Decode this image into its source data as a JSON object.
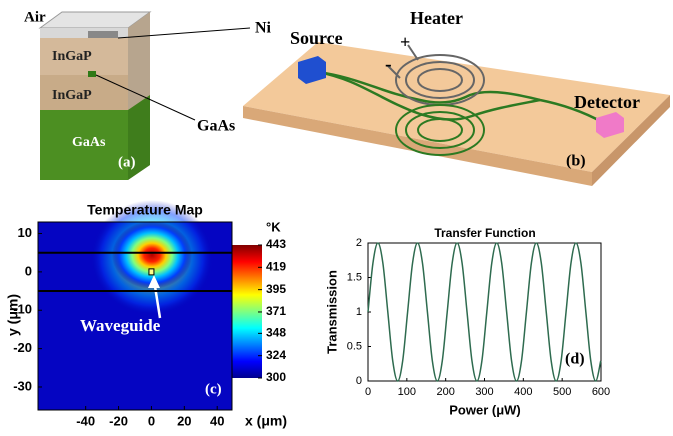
{
  "panel_a": {
    "labels": [
      "Air",
      "Ni",
      "InGaP",
      "InGaP",
      "GaAs",
      "GaAs"
    ],
    "tag": "(a)"
  },
  "panel_b": {
    "source": "Source",
    "heater": "Heater",
    "plus": "+",
    "minus": "-",
    "detector": "Detector",
    "tag": "(b)"
  },
  "chart_data": [
    {
      "type": "heatmap",
      "title": "Temperature Map",
      "color_unit": "°K",
      "clim": [
        300,
        443
      ],
      "cticks": [
        443,
        419,
        395,
        371,
        348,
        324,
        300
      ],
      "xlim": [
        -69,
        49
      ],
      "ylim": [
        -36,
        13
      ],
      "xticks": [
        -40,
        -20,
        0,
        20,
        40
      ],
      "yticks": [
        10,
        0,
        -10,
        -20,
        -30
      ],
      "x_label": "x (μm)",
      "y_label": "y (μm)",
      "layer_boundaries": [
        5,
        -5
      ],
      "annotation": "Waveguide",
      "tag": "(c)"
    },
    {
      "type": "line",
      "title": "Transfer Function",
      "x_label": "Power (μW)",
      "y_label": "Transmission",
      "xlim": [
        0,
        600
      ],
      "ylim": [
        0,
        2
      ],
      "xticks": [
        0,
        100,
        200,
        300,
        400,
        500,
        600
      ],
      "yticks": [
        0,
        0.5,
        1,
        1.5,
        2
      ],
      "series": [
        {
          "color": "#2e6b4f",
          "x": [
            0,
            12.75,
            25.5,
            38.25,
            51,
            63.75,
            76.5,
            89.25,
            102,
            114.75,
            127.5,
            140.25,
            153,
            165.75,
            178.5,
            191.25,
            204,
            216.75,
            229.5,
            242.25,
            255,
            267.75,
            280.5,
            293.25,
            306,
            318.75,
            331.5,
            344.25,
            357,
            369.75,
            382.5,
            395.25,
            408,
            420.75,
            433.5,
            446.25,
            459,
            471.75,
            484.5,
            497.25,
            510,
            522.75,
            535.5,
            548.25,
            561,
            573.75,
            586.5,
            599.25
          ],
          "values": [
            1,
            1.71,
            2,
            1.71,
            1,
            0.29,
            0,
            0.29,
            1,
            1.71,
            2,
            1.71,
            1,
            0.29,
            0,
            0.29,
            1,
            1.71,
            2,
            1.71,
            1,
            0.29,
            0,
            0.29,
            1,
            1.71,
            2,
            1.71,
            1,
            0.29,
            0,
            0.29,
            1,
            1.71,
            2,
            1.71,
            1,
            0.29,
            0,
            0.29,
            1,
            1.71,
            2,
            1.71,
            1,
            0.29,
            0,
            0.29
          ]
        }
      ],
      "tag": "(d)"
    }
  ]
}
